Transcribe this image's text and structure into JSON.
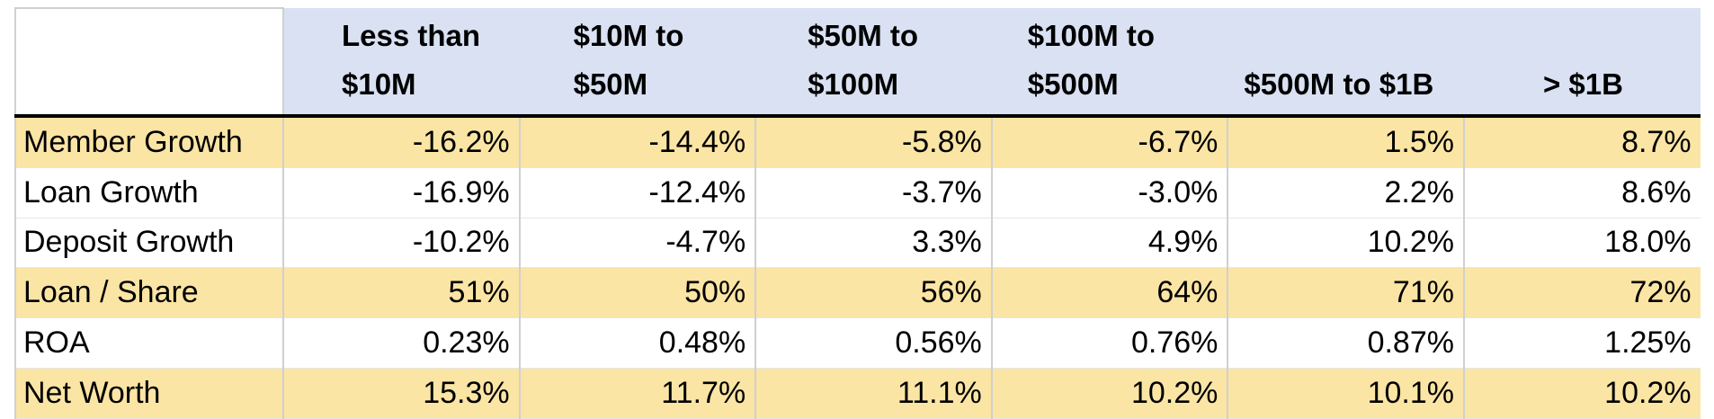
{
  "table": {
    "columns": [
      {
        "line1": "Less than",
        "line2": "$10M"
      },
      {
        "line1": "$10M to",
        "line2": "$50M"
      },
      {
        "line1": "$50M to",
        "line2": "$100M"
      },
      {
        "line1": "$100M to",
        "line2": "$500M"
      },
      {
        "line1": "",
        "line2": "$500M to $1B"
      },
      {
        "line1": "",
        "line2": "> $1B"
      }
    ],
    "rows": [
      {
        "label": "Member Growth",
        "shaded": true,
        "values": [
          "-16.2%",
          "-14.4%",
          "-5.8%",
          "-6.7%",
          "1.5%",
          "8.7%"
        ]
      },
      {
        "label": "Loan Growth",
        "shaded": false,
        "values": [
          "-16.9%",
          "-12.4%",
          "-3.7%",
          "-3.0%",
          "2.2%",
          "8.6%"
        ]
      },
      {
        "label": "Deposit Growth",
        "shaded": false,
        "values": [
          "-10.2%",
          "-4.7%",
          "3.3%",
          "4.9%",
          "10.2%",
          "18.0%"
        ]
      },
      {
        "label": "Loan / Share",
        "shaded": true,
        "values": [
          "51%",
          "50%",
          "56%",
          "64%",
          "71%",
          "72%"
        ]
      },
      {
        "label": "ROA",
        "shaded": false,
        "values": [
          "0.23%",
          "0.48%",
          "0.56%",
          "0.76%",
          "0.87%",
          "1.25%"
        ]
      },
      {
        "label": "Net Worth",
        "shaded": true,
        "values": [
          "15.3%",
          "11.7%",
          "11.1%",
          "10.2%",
          "10.1%",
          "10.2%"
        ]
      }
    ]
  },
  "colors": {
    "header_bg": "#d9e1f2",
    "shaded_row_bg": "#fbe5a5",
    "plain_row_bg": "#ffffff",
    "header_rule": "#000000",
    "grid_line": "#d0d0d0"
  }
}
